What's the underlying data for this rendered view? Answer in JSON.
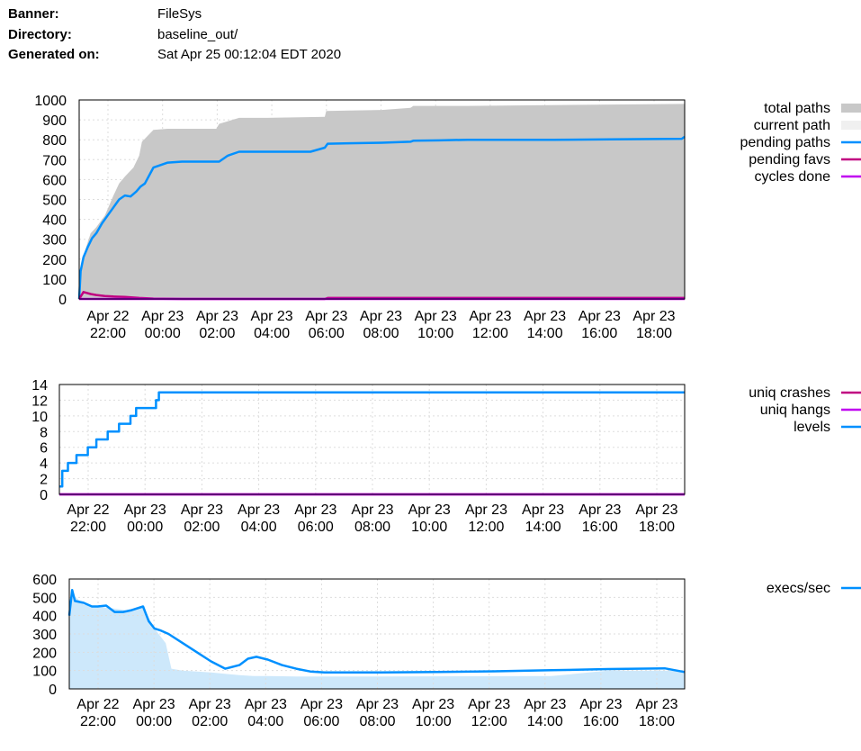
{
  "header": {
    "banner_label": "Banner:",
    "banner": "FileSys",
    "directory_label": "Directory:",
    "directory": "baseline_out/",
    "generated_label": "Generated on:",
    "generated": "Sat Apr 25 00:12:04 EDT 2020"
  },
  "x_ticks": [
    {
      "date": "Apr 22",
      "time": "22:00"
    },
    {
      "date": "Apr 23",
      "time": "00:00"
    },
    {
      "date": "Apr 23",
      "time": "02:00"
    },
    {
      "date": "Apr 23",
      "time": "04:00"
    },
    {
      "date": "Apr 23",
      "time": "06:00"
    },
    {
      "date": "Apr 23",
      "time": "08:00"
    },
    {
      "date": "Apr 23",
      "time": "10:00"
    },
    {
      "date": "Apr 23",
      "time": "12:00"
    },
    {
      "date": "Apr 23",
      "time": "14:00"
    },
    {
      "date": "Apr 23",
      "time": "16:00"
    },
    {
      "date": "Apr 23",
      "time": "18:00"
    }
  ],
  "colors": {
    "total_paths": "#c8c8c8",
    "current_path": "#f0f0f0",
    "pending_paths": "#0090ff",
    "pending_favs": "#c00080",
    "cycles_done": "#c000f0",
    "uniq_crashes": "#c00080",
    "uniq_hangs": "#c000f0",
    "levels": "#0090ff",
    "execs_fill": "#cde8fb",
    "execs_line": "#0090ff",
    "grid": "#dddddd"
  },
  "chart_data": [
    {
      "type": "area",
      "x_unit": "hours since Apr 22 22:00",
      "xlim": [
        -0.6,
        20.6
      ],
      "ylim": [
        0,
        1000
      ],
      "y_ticks": [
        0,
        100,
        200,
        300,
        400,
        500,
        600,
        700,
        800,
        900,
        1000
      ],
      "grid": true,
      "legend": "right",
      "series": [
        {
          "name": "total paths",
          "kind": "area",
          "x": [
            -0.6,
            -0.55,
            -0.4,
            -0.2,
            0,
            0.3,
            0.6,
            0.8,
            1,
            1.3,
            1.5,
            1.6,
            2.0,
            2.5,
            2.6,
            3.5,
            4.2,
            4.3,
            5.0,
            6.0,
            8.0,
            8.05,
            10.0,
            11.0,
            11.1,
            13.0,
            20.6
          ],
          "y": [
            0,
            130,
            240,
            330,
            360,
            420,
            520,
            580,
            615,
            660,
            720,
            790,
            850,
            855,
            855,
            855,
            855,
            880,
            910,
            910,
            915,
            945,
            950,
            960,
            970,
            970,
            980
          ]
        },
        {
          "name": "current path",
          "kind": "area",
          "x": [],
          "y": []
        },
        {
          "name": "pending paths",
          "kind": "line",
          "x": [
            -0.6,
            -0.55,
            -0.45,
            -0.3,
            -0.15,
            0,
            0.2,
            0.4,
            0.6,
            0.8,
            1.0,
            1.2,
            1.4,
            1.55,
            1.7,
            2.0,
            2.5,
            3.0,
            3.5,
            4.1,
            4.3,
            4.5,
            4.6,
            5.0,
            7.5,
            8.0,
            8.1,
            10.0,
            11.0,
            11.1,
            12.0,
            13.0,
            14.5,
            16.0,
            18.0,
            20.5,
            20.6
          ],
          "y": [
            0,
            140,
            210,
            260,
            305,
            330,
            380,
            420,
            460,
            500,
            520,
            515,
            540,
            565,
            580,
            660,
            685,
            690,
            690,
            690,
            690,
            710,
            720,
            740,
            740,
            760,
            780,
            785,
            790,
            795,
            797,
            800,
            800,
            800,
            802,
            805,
            815
          ]
        },
        {
          "name": "pending favs",
          "kind": "line",
          "x": [
            -0.6,
            -0.45,
            -0.2,
            0,
            0.3,
            0.6,
            1.0,
            1.5,
            2.0,
            3.0,
            6.0,
            8.0,
            8.1,
            20.6
          ],
          "y": [
            0,
            35,
            25,
            20,
            15,
            12,
            10,
            5,
            2,
            0,
            0,
            0,
            5,
            5
          ]
        },
        {
          "name": "cycles done",
          "kind": "line",
          "x": [
            -0.6,
            20.6
          ],
          "y": [
            0,
            0
          ]
        }
      ]
    },
    {
      "type": "line",
      "x_unit": "hours since Apr 22 22:00",
      "xlim": [
        -1.3,
        20.7
      ],
      "ylim": [
        0,
        14
      ],
      "y_ticks": [
        0,
        2,
        4,
        6,
        8,
        10,
        12,
        14
      ],
      "grid": true,
      "legend": "right",
      "series": [
        {
          "name": "uniq crashes",
          "x": [
            -1.3,
            20.7
          ],
          "y": [
            0,
            0
          ]
        },
        {
          "name": "uniq hangs",
          "x": [
            -1.3,
            20.7
          ],
          "y": [
            0,
            0
          ]
        },
        {
          "name": "levels",
          "step": true,
          "x": [
            -1.3,
            -1.2,
            -1.0,
            -0.7,
            -0.3,
            0,
            0.4,
            0.8,
            1.2,
            1.4,
            1.6,
            2.1,
            2.2,
            20.7
          ],
          "y": [
            1,
            3,
            4,
            5,
            6,
            7,
            8,
            9,
            10,
            11,
            11,
            12,
            13,
            13
          ]
        }
      ]
    },
    {
      "type": "area",
      "x_unit": "hours since Apr 22 22:00",
      "xlim": [
        -1.0,
        20.7
      ],
      "ylim": [
        0,
        600
      ],
      "y_ticks": [
        0,
        100,
        200,
        300,
        400,
        500,
        600
      ],
      "grid": true,
      "legend": "right",
      "series": [
        {
          "name": "execs/sec",
          "kind": "line",
          "x": [
            -1.0,
            -0.9,
            -0.8,
            -0.5,
            -0.2,
            0,
            0.3,
            0.6,
            0.9,
            1.2,
            1.6,
            1.8,
            2.0,
            2.2,
            2.5,
            3.0,
            3.5,
            4.0,
            4.5,
            5.0,
            5.3,
            5.6,
            6.0,
            6.5,
            7.0,
            7.5,
            8.0,
            10.0,
            12.0,
            14.0,
            16.0,
            18.0,
            20.0,
            20.7
          ],
          "y": [
            400,
            540,
            480,
            470,
            450,
            450,
            455,
            420,
            420,
            430,
            450,
            370,
            330,
            320,
            300,
            250,
            200,
            150,
            110,
            130,
            165,
            175,
            160,
            130,
            110,
            95,
            90,
            90,
            92,
            96,
            102,
            108,
            112,
            92
          ]
        },
        {
          "name": "execs/sec (raw)",
          "kind": "area",
          "x": [
            -1.0,
            -0.9,
            -0.5,
            0,
            0.5,
            1.0,
            1.6,
            2.0,
            2.4,
            2.6,
            3.0,
            4.0,
            5.0,
            5.5,
            6.0,
            7.0,
            10.0,
            16.0,
            18.0,
            20.7
          ],
          "y": [
            350,
            520,
            460,
            450,
            440,
            430,
            450,
            330,
            250,
            110,
            100,
            90,
            75,
            70,
            70,
            68,
            68,
            70,
            100,
            100
          ]
        }
      ]
    }
  ]
}
